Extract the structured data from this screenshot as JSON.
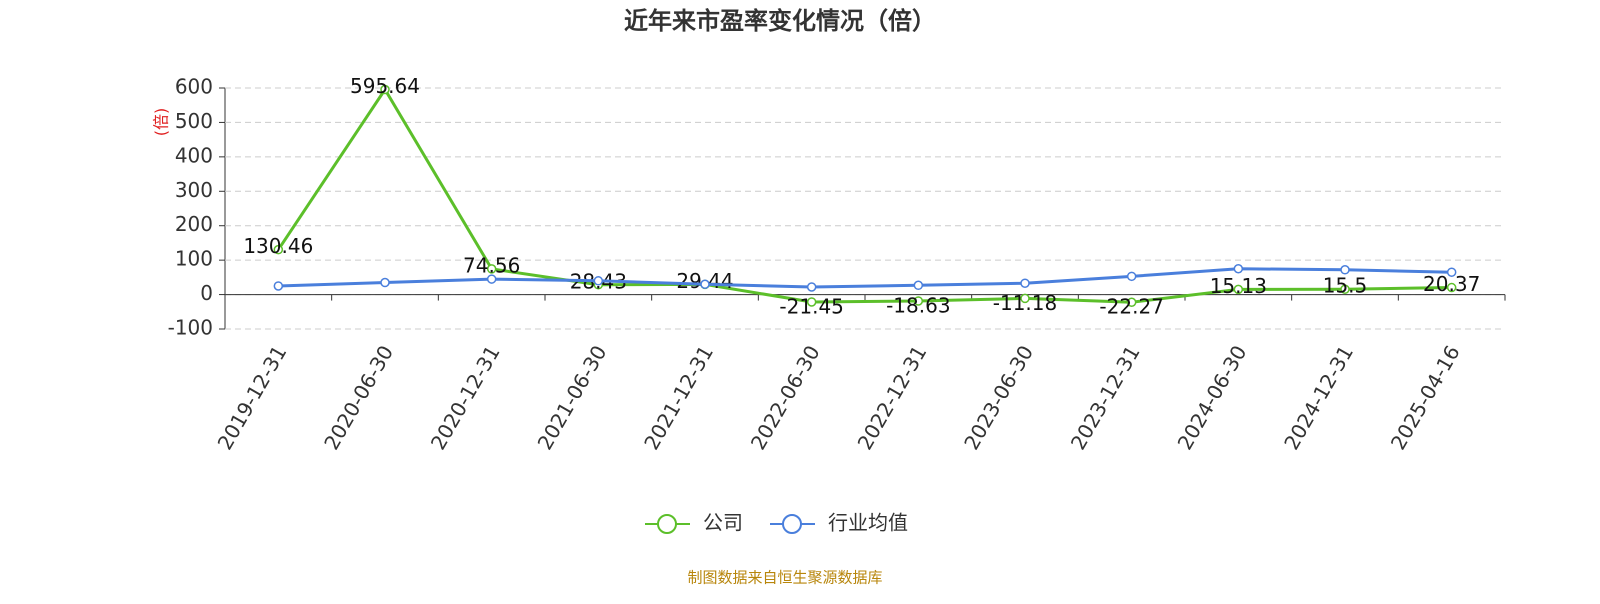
{
  "chart_data": {
    "type": "line",
    "title": "近年来市盈率变化情况（倍）",
    "y_label": "(倍)",
    "categories": [
      "2019-12-31",
      "2020-06-30",
      "2020-12-31",
      "2021-06-30",
      "2021-12-31",
      "2022-06-30",
      "2022-12-31",
      "2023-06-30",
      "2023-12-31",
      "2024-06-30",
      "2024-12-31",
      "2025-04-16"
    ],
    "series": [
      {
        "name": "公司",
        "color": "#5cbf2a",
        "values": [
          130.46,
          595.64,
          74.56,
          28.43,
          29.44,
          -21.45,
          -18.63,
          -11.18,
          -22.27,
          15.13,
          15.5,
          20.37
        ]
      },
      {
        "name": "行业均值",
        "color": "#4a7fdc",
        "values": [
          25,
          35,
          45,
          40,
          30,
          22,
          27,
          33,
          53,
          75,
          72,
          65
        ]
      }
    ],
    "ylim": [
      -100,
      600
    ],
    "yticks": [
      -100,
      0,
      100,
      200,
      300,
      400,
      500,
      600
    ],
    "grid": true,
    "source": "制图数据来自恒生聚源数据库"
  }
}
